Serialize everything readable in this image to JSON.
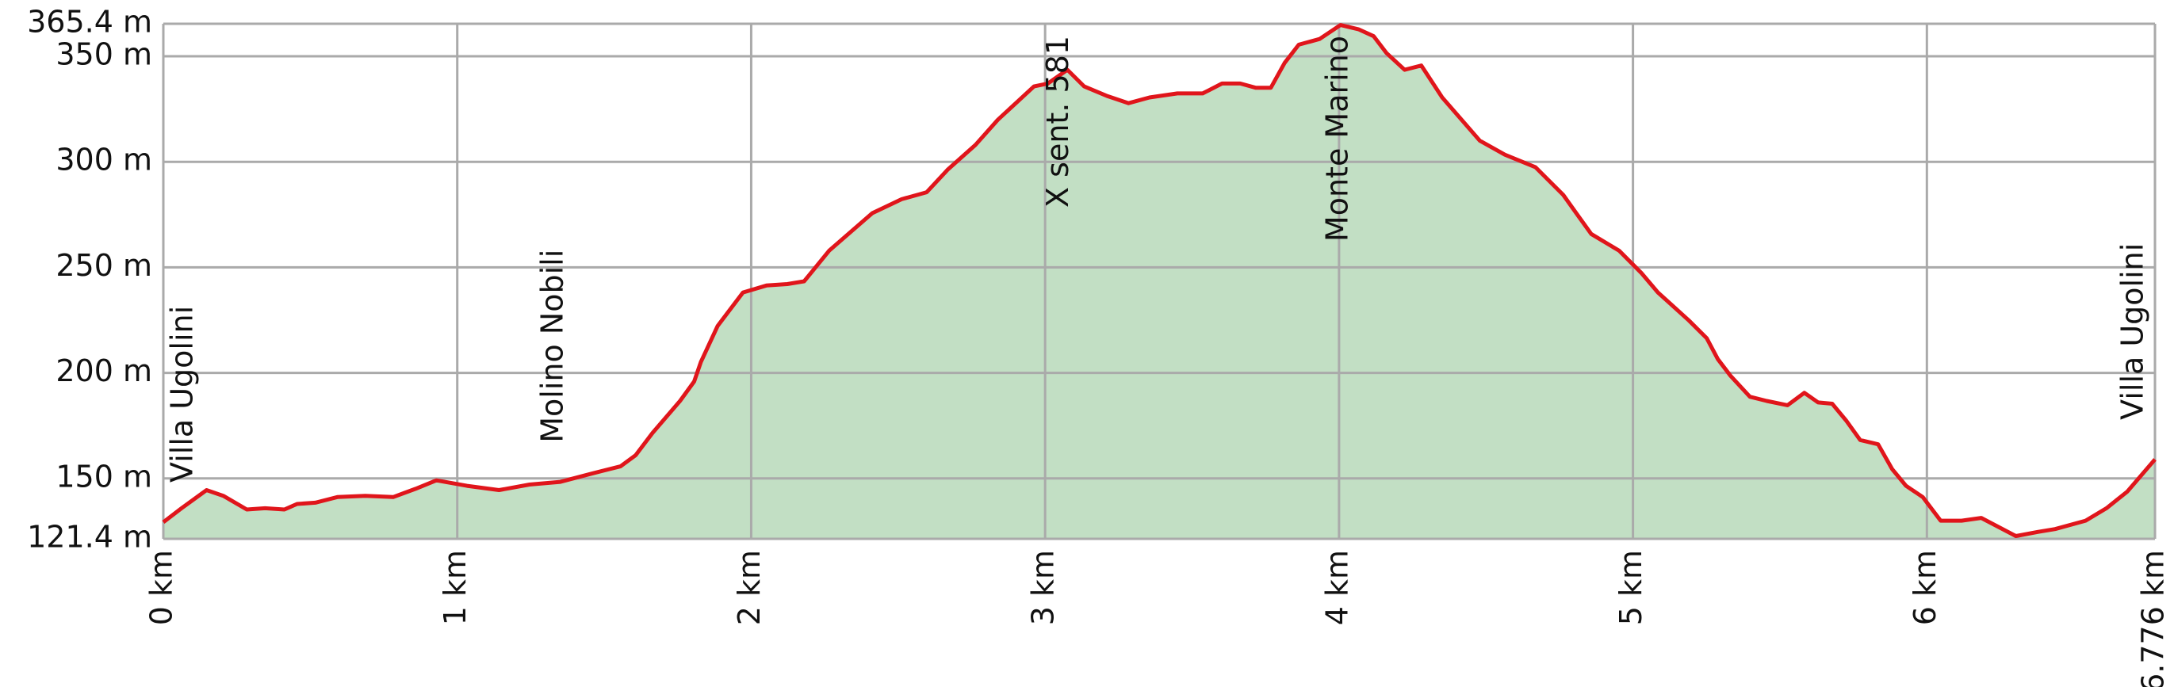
{
  "chart_data": {
    "type": "area",
    "x": [
      0,
      0.062,
      0.147,
      0.204,
      0.284,
      0.346,
      0.412,
      0.455,
      0.517,
      0.592,
      0.687,
      0.782,
      0.858,
      0.929,
      1.033,
      1.142,
      1.246,
      1.351,
      1.46,
      1.555,
      1.607,
      1.664,
      1.758,
      1.806,
      1.829,
      1.886,
      1.972,
      2.052,
      2.123,
      2.18,
      2.265,
      2.412,
      2.512,
      2.597,
      2.668,
      2.763,
      2.839,
      2.962,
      3.009,
      3.076,
      3.133,
      3.213,
      3.284,
      3.355,
      3.45,
      3.536,
      3.602,
      3.664,
      3.716,
      3.768,
      3.815,
      3.863,
      3.934,
      4.005,
      4.066,
      4.118,
      4.161,
      4.223,
      4.28,
      4.351,
      4.479,
      4.564,
      4.668,
      4.763,
      4.81,
      4.858,
      4.953,
      5.028,
      5.085,
      5.19,
      5.251,
      5.289,
      5.332,
      5.398,
      5.455,
      5.526,
      5.583,
      5.63,
      5.678,
      5.725,
      5.773,
      5.834,
      5.882,
      5.929,
      5.986,
      6.047,
      6.118,
      6.185,
      6.303,
      6.379,
      6.436,
      6.54,
      6.611,
      6.682,
      6.776
    ],
    "series": [
      {
        "color": "#e0151b",
        "fill": "#c2dfc4",
        "values": [
          129.3,
          135.9,
          144.5,
          141.8,
          135.3,
          135.9,
          135.3,
          137.9,
          138.5,
          141.2,
          141.8,
          141.2,
          145.1,
          149.1,
          146.5,
          144.5,
          147.1,
          148.4,
          152.4,
          155.7,
          161,
          171.5,
          186.7,
          195.9,
          205.2,
          222.3,
          238.1,
          241.4,
          242.1,
          243.4,
          257.9,
          275.7,
          282.3,
          285.6,
          296.2,
          308,
          319.9,
          335.7,
          337.1,
          343.6,
          335.7,
          331.1,
          327.8,
          330.5,
          332.4,
          332.4,
          337.1,
          337.1,
          335.1,
          335.1,
          346.9,
          355.5,
          358.2,
          364.8,
          362.8,
          359.5,
          351.6,
          343.6,
          345.6,
          330.5,
          310,
          303.4,
          297.5,
          284.3,
          275.1,
          265.8,
          257.9,
          247.4,
          238.1,
          224.9,
          216.4,
          206.5,
          198.6,
          188.7,
          186.7,
          184.7,
          190.6,
          186,
          185.4,
          177.5,
          168.2,
          166.2,
          154.4,
          146.5,
          141.2,
          130,
          130,
          131.3,
          122.7,
          124.7,
          126,
          130,
          135.9,
          143.8,
          159
        ]
      }
    ],
    "xlim": [
      0,
      6.776
    ],
    "xticks": [
      {
        "value": 0,
        "label": "0 km"
      },
      {
        "value": 1,
        "label": "1 km"
      },
      {
        "value": 2,
        "label": "2 km"
      },
      {
        "value": 3,
        "label": "3 km"
      },
      {
        "value": 4,
        "label": "4 km"
      },
      {
        "value": 5,
        "label": "5 km"
      },
      {
        "value": 6,
        "label": "6 km"
      },
      {
        "value": 6.776,
        "label": "6.776 km"
      }
    ],
    "ylim": [
      121.4,
      365.4
    ],
    "yticks": [
      {
        "value": 121.4,
        "label": "121.4 m"
      },
      {
        "value": 150,
        "label": "150 m"
      },
      {
        "value": 200,
        "label": "200 m"
      },
      {
        "value": 250,
        "label": "250 m"
      },
      {
        "value": 300,
        "label": "300 m"
      },
      {
        "value": 350,
        "label": "350 m"
      },
      {
        "value": 365.4,
        "label": "365.4 m"
      }
    ],
    "grid": true,
    "annotations": [
      {
        "text": "Villa Ugolini",
        "x": 0
      },
      {
        "text": "Molino Nobili",
        "x": 1.33
      },
      {
        "text": "X sent. 581",
        "x": 3.05
      },
      {
        "text": "Monte Marino",
        "x": 4.0
      },
      {
        "text": "Villa Ugolini",
        "x": 6.776
      }
    ]
  }
}
